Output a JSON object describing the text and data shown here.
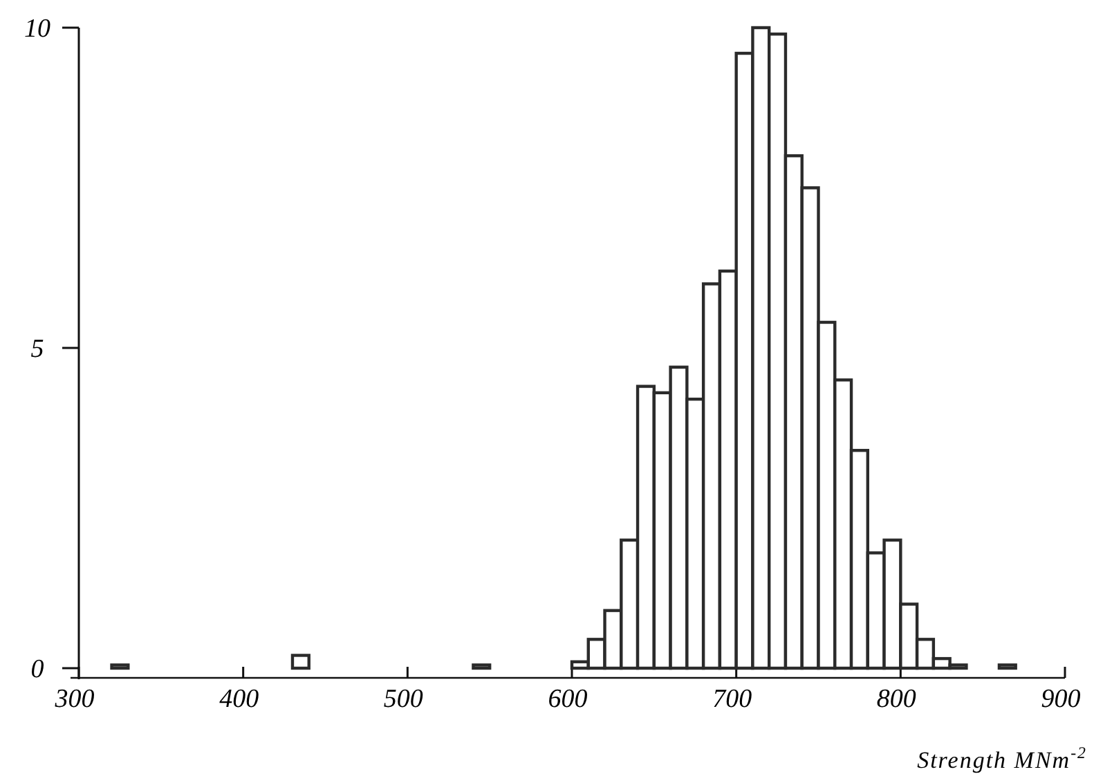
{
  "chart_data": {
    "type": "histogram",
    "xlabel": "Strength MNm$^{-2}$",
    "bins": [
      300,
      310,
      320,
      330,
      340,
      350,
      360,
      370,
      380,
      390,
      400,
      410,
      420,
      430,
      440,
      450,
      460,
      470,
      480,
      490,
      500,
      510,
      520,
      530,
      540,
      550,
      560,
      570,
      580,
      590,
      600,
      610,
      620,
      630,
      640,
      650,
      660,
      670,
      680,
      690,
      700,
      710,
      720,
      730,
      740,
      750,
      760,
      770,
      780,
      790,
      800,
      810,
      820,
      830,
      840,
      850,
      860,
      870,
      880,
      890,
      900
    ],
    "values": [
      0,
      0,
      0.05,
      0,
      0,
      0,
      0,
      0,
      0,
      0,
      0,
      0,
      0,
      0.2,
      0,
      0,
      0,
      0,
      0,
      0,
      0,
      0,
      0,
      0,
      0.05,
      0,
      0,
      0,
      0,
      0,
      0.1,
      0.45,
      0.9,
      2.0,
      4.4,
      4.3,
      4.7,
      4.2,
      6.0,
      6.2,
      9.6,
      10.0,
      9.9,
      8.0,
      7.5,
      5.4,
      4.5,
      3.4,
      1.8,
      2.0,
      1.0,
      0.45,
      0.15,
      0.05,
      0,
      0,
      0.05,
      0,
      0,
      0
    ],
    "color": "#2b2b2b",
    "xlim": [
      300,
      900
    ],
    "xticks": [
      300,
      400,
      500,
      600,
      700,
      800,
      900
    ],
    "ylim": [
      0,
      10
    ],
    "yticks": [
      0,
      5,
      10
    ],
    "grid": false
  }
}
